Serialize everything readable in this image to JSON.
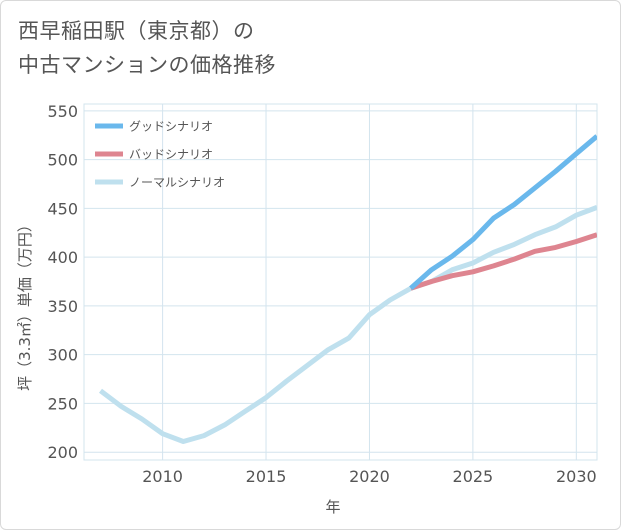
{
  "title_lines": [
    "西早稲田駅（東京都）の",
    "中古マンションの価格推移"
  ],
  "colors": {
    "good": "#6ab8ec",
    "bad": "#de8590",
    "normal": "#bfe0ee",
    "grid": "#d3e4ee",
    "text": "#555555"
  },
  "chart_data": {
    "type": "line",
    "title": "西早稲田駅（東京都）の中古マンションの価格推移",
    "xlabel": "年",
    "ylabel": "坪（3.3㎡）単価（万円）",
    "xlim": [
      2006.2,
      2031
    ],
    "ylim": [
      192,
      557
    ],
    "x_ticks": [
      2010,
      2015,
      2020,
      2025,
      2030
    ],
    "y_ticks": [
      200,
      250,
      300,
      350,
      400,
      450,
      500,
      550
    ],
    "legend_position": "top-left",
    "series": [
      {
        "name": "グッドシナリオ",
        "color": "#6ab8ec",
        "x": [
          2022,
          2023,
          2024,
          2025,
          2026,
          2027,
          2028,
          2029,
          2030,
          2031
        ],
        "values": [
          368,
          387,
          401,
          418,
          440,
          454,
          471,
          488,
          506,
          524
        ]
      },
      {
        "name": "バッドシナリオ",
        "color": "#de8590",
        "x": [
          2022,
          2023,
          2024,
          2025,
          2026,
          2027,
          2028,
          2029,
          2030,
          2031
        ],
        "values": [
          368,
          375,
          381,
          385,
          391,
          398,
          406,
          410,
          416,
          423
        ]
      },
      {
        "name": "ノーマルシナリオ",
        "color": "#bfe0ee",
        "x": [
          2007,
          2008,
          2009,
          2010,
          2011,
          2012,
          2013,
          2014,
          2015,
          2016,
          2017,
          2018,
          2019,
          2020,
          2021,
          2022,
          2023,
          2024,
          2025,
          2026,
          2027,
          2028,
          2029,
          2030,
          2031
        ],
        "values": [
          263,
          247,
          234,
          219,
          211,
          217,
          228,
          242,
          256,
          273,
          289,
          305,
          317,
          341,
          356,
          368,
          375,
          387,
          394,
          405,
          413,
          423,
          431,
          443,
          451
        ]
      }
    ]
  }
}
